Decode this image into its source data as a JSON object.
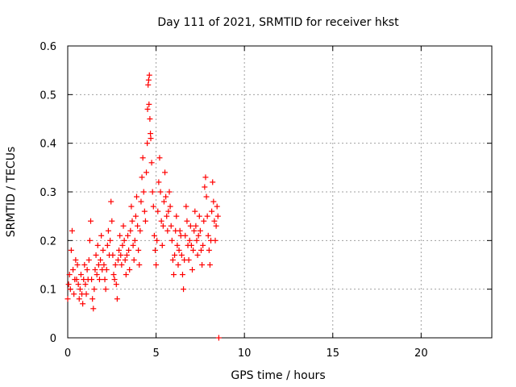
{
  "chart_data": {
    "type": "scatter",
    "title": "Day 111 of 2021, SRMTID for receiver hkst",
    "xlabel": "GPS time / hours",
    "ylabel": "SRMTID / TECUs",
    "xlim": [
      0,
      24
    ],
    "ylim": [
      0,
      0.6
    ],
    "x_ticks": [
      0,
      5,
      10,
      15,
      20
    ],
    "x_tick_labels": [
      "0",
      "5",
      "10",
      "15",
      "20"
    ],
    "y_ticks": [
      0,
      0.1,
      0.2,
      0.3,
      0.4,
      0.5,
      0.6
    ],
    "y_tick_labels": [
      "0",
      "0.1",
      "0.2",
      "0.3",
      "0.4",
      "0.5",
      "0.6"
    ],
    "grid": true,
    "marker": "+",
    "color": "#ff0000",
    "series": [
      {
        "name": "SRMTID",
        "points": [
          [
            0.0,
            0.08
          ],
          [
            0.05,
            0.11
          ],
          [
            0.1,
            0.13
          ],
          [
            0.15,
            0.1
          ],
          [
            0.2,
            0.18
          ],
          [
            0.25,
            0.22
          ],
          [
            0.3,
            0.14
          ],
          [
            0.35,
            0.09
          ],
          [
            0.4,
            0.12
          ],
          [
            0.45,
            0.16
          ],
          [
            0.5,
            0.12
          ],
          [
            0.55,
            0.15
          ],
          [
            0.6,
            0.11
          ],
          [
            0.65,
            0.08
          ],
          [
            0.7,
            0.1
          ],
          [
            0.75,
            0.13
          ],
          [
            0.8,
            0.09
          ],
          [
            0.85,
            0.07
          ],
          [
            0.9,
            0.12
          ],
          [
            0.95,
            0.15
          ],
          [
            1.0,
            0.11
          ],
          [
            1.05,
            0.09
          ],
          [
            1.1,
            0.14
          ],
          [
            1.15,
            0.12
          ],
          [
            1.2,
            0.16
          ],
          [
            1.25,
            0.2
          ],
          [
            1.3,
            0.24
          ],
          [
            1.35,
            0.12
          ],
          [
            1.4,
            0.08
          ],
          [
            1.45,
            0.06
          ],
          [
            1.5,
            0.1
          ],
          [
            1.55,
            0.14
          ],
          [
            1.6,
            0.17
          ],
          [
            1.65,
            0.13
          ],
          [
            1.7,
            0.19
          ],
          [
            1.75,
            0.15
          ],
          [
            1.8,
            0.12
          ],
          [
            1.85,
            0.16
          ],
          [
            1.9,
            0.21
          ],
          [
            1.95,
            0.14
          ],
          [
            2.0,
            0.18
          ],
          [
            2.05,
            0.15
          ],
          [
            2.1,
            0.12
          ],
          [
            2.15,
            0.1
          ],
          [
            2.2,
            0.14
          ],
          [
            2.25,
            0.19
          ],
          [
            2.3,
            0.22
          ],
          [
            2.35,
            0.17
          ],
          [
            2.4,
            0.2
          ],
          [
            2.45,
            0.28
          ],
          [
            2.5,
            0.24
          ],
          [
            2.55,
            0.17
          ],
          [
            2.6,
            0.13
          ],
          [
            2.65,
            0.12
          ],
          [
            2.7,
            0.15
          ],
          [
            2.75,
            0.11
          ],
          [
            2.8,
            0.08
          ],
          [
            2.85,
            0.16
          ],
          [
            2.9,
            0.18
          ],
          [
            2.95,
            0.21
          ],
          [
            3.0,
            0.17
          ],
          [
            3.05,
            0.15
          ],
          [
            3.1,
            0.19
          ],
          [
            3.15,
            0.23
          ],
          [
            3.2,
            0.2
          ],
          [
            3.25,
            0.16
          ],
          [
            3.3,
            0.13
          ],
          [
            3.35,
            0.17
          ],
          [
            3.4,
            0.21
          ],
          [
            3.45,
            0.18
          ],
          [
            3.5,
            0.14
          ],
          [
            3.55,
            0.22
          ],
          [
            3.6,
            0.27
          ],
          [
            3.65,
            0.24
          ],
          [
            3.7,
            0.19
          ],
          [
            3.75,
            0.16
          ],
          [
            3.8,
            0.2
          ],
          [
            3.85,
            0.25
          ],
          [
            3.9,
            0.29
          ],
          [
            3.95,
            0.23
          ],
          [
            4.0,
            0.18
          ],
          [
            4.05,
            0.15
          ],
          [
            4.1,
            0.22
          ],
          [
            4.15,
            0.28
          ],
          [
            4.2,
            0.33
          ],
          [
            4.25,
            0.37
          ],
          [
            4.3,
            0.3
          ],
          [
            4.35,
            0.26
          ],
          [
            4.4,
            0.24
          ],
          [
            4.45,
            0.34
          ],
          [
            4.5,
            0.4
          ],
          [
            4.52,
            0.47
          ],
          [
            4.55,
            0.52
          ],
          [
            4.58,
            0.53
          ],
          [
            4.6,
            0.48
          ],
          [
            4.62,
            0.54
          ],
          [
            4.65,
            0.45
          ],
          [
            4.68,
            0.42
          ],
          [
            4.7,
            0.41
          ],
          [
            4.75,
            0.36
          ],
          [
            4.8,
            0.3
          ],
          [
            4.85,
            0.27
          ],
          [
            4.9,
            0.21
          ],
          [
            4.95,
            0.18
          ],
          [
            5.0,
            0.15
          ],
          [
            5.05,
            0.2
          ],
          [
            5.1,
            0.26
          ],
          [
            5.15,
            0.32
          ],
          [
            5.2,
            0.37
          ],
          [
            5.25,
            0.3
          ],
          [
            5.3,
            0.24
          ],
          [
            5.35,
            0.19
          ],
          [
            5.4,
            0.23
          ],
          [
            5.45,
            0.28
          ],
          [
            5.5,
            0.34
          ],
          [
            5.55,
            0.29
          ],
          [
            5.6,
            0.25
          ],
          [
            5.65,
            0.22
          ],
          [
            5.7,
            0.26
          ],
          [
            5.75,
            0.3
          ],
          [
            5.8,
            0.27
          ],
          [
            5.85,
            0.23
          ],
          [
            5.9,
            0.2
          ],
          [
            5.95,
            0.16
          ],
          [
            6.0,
            0.13
          ],
          [
            6.05,
            0.17
          ],
          [
            6.1,
            0.22
          ],
          [
            6.15,
            0.25
          ],
          [
            6.2,
            0.19
          ],
          [
            6.25,
            0.15
          ],
          [
            6.3,
            0.18
          ],
          [
            6.35,
            0.22
          ],
          [
            6.4,
            0.21
          ],
          [
            6.45,
            0.17
          ],
          [
            6.5,
            0.13
          ],
          [
            6.55,
            0.1
          ],
          [
            6.6,
            0.16
          ],
          [
            6.65,
            0.21
          ],
          [
            6.7,
            0.27
          ],
          [
            6.75,
            0.24
          ],
          [
            6.8,
            0.19
          ],
          [
            6.85,
            0.16
          ],
          [
            6.9,
            0.2
          ],
          [
            6.95,
            0.23
          ],
          [
            7.0,
            0.19
          ],
          [
            7.05,
            0.14
          ],
          [
            7.1,
            0.18
          ],
          [
            7.15,
            0.22
          ],
          [
            7.2,
            0.26
          ],
          [
            7.25,
            0.23
          ],
          [
            7.3,
            0.2
          ],
          [
            7.35,
            0.17
          ],
          [
            7.4,
            0.21
          ],
          [
            7.45,
            0.25
          ],
          [
            7.5,
            0.22
          ],
          [
            7.55,
            0.18
          ],
          [
            7.6,
            0.15
          ],
          [
            7.65,
            0.19
          ],
          [
            7.7,
            0.24
          ],
          [
            7.75,
            0.31
          ],
          [
            7.8,
            0.33
          ],
          [
            7.85,
            0.29
          ],
          [
            7.9,
            0.25
          ],
          [
            7.95,
            0.21
          ],
          [
            8.0,
            0.18
          ],
          [
            8.05,
            0.15
          ],
          [
            8.1,
            0.2
          ],
          [
            8.15,
            0.26
          ],
          [
            8.2,
            0.32
          ],
          [
            8.25,
            0.28
          ],
          [
            8.3,
            0.24
          ],
          [
            8.35,
            0.2
          ],
          [
            8.4,
            0.23
          ],
          [
            8.45,
            0.27
          ],
          [
            8.5,
            0.25
          ],
          [
            8.55,
            0.0
          ]
        ]
      }
    ]
  }
}
